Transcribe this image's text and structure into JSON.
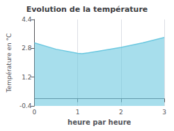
{
  "chart_data": {
    "type": "line",
    "title": "Evolution de la température",
    "xlabel": "heure par heure",
    "ylabel": "Température en °C",
    "x": [
      0,
      0.5,
      1.0,
      1.1,
      1.25,
      1.5,
      2.0,
      2.5,
      3.0
    ],
    "values": [
      3.1,
      2.75,
      2.52,
      2.5,
      2.55,
      2.65,
      2.85,
      3.1,
      3.4
    ],
    "color": "#6cc8e0",
    "xlim": [
      0,
      3
    ],
    "xticks": [
      0,
      1,
      2,
      3
    ],
    "ylim": [
      -0.4,
      4.4
    ],
    "yticks": [
      -0.4,
      1.2,
      2.8,
      4.4
    ],
    "grid": "x"
  }
}
